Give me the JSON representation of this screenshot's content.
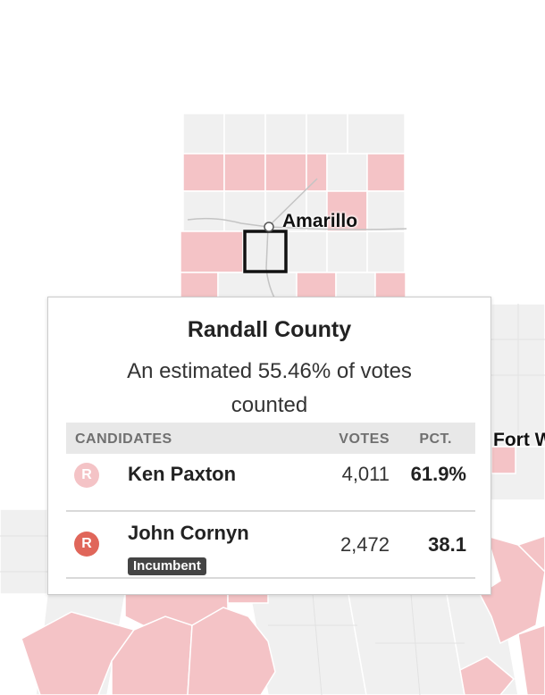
{
  "map": {
    "cities": [
      {
        "name": "Amarillo"
      },
      {
        "name": "Fort W"
      }
    ],
    "colors": {
      "republican_light": "#f4c3c6",
      "republican_dark": "#e0665a",
      "background_county": "#f0f0f0",
      "county_border": "#ffffff",
      "highlight_border": "#111111"
    }
  },
  "tooltip": {
    "county": "Randall County",
    "estimate": "An estimated 55.46% of votes counted",
    "headers": {
      "candidates": "CANDIDATES",
      "votes": "VOTES",
      "pct": "PCT."
    },
    "candidates": [
      {
        "name": "Ken Paxton",
        "party": "R",
        "votes": "4,011",
        "pct": "61.9%",
        "badge_color": "#f4c3c6",
        "incumbent": ""
      },
      {
        "name": "John Cornyn",
        "party": "R",
        "votes": "2,472",
        "pct": "38.1",
        "badge_color": "#e0665a",
        "incumbent": "Incumbent"
      }
    ]
  }
}
